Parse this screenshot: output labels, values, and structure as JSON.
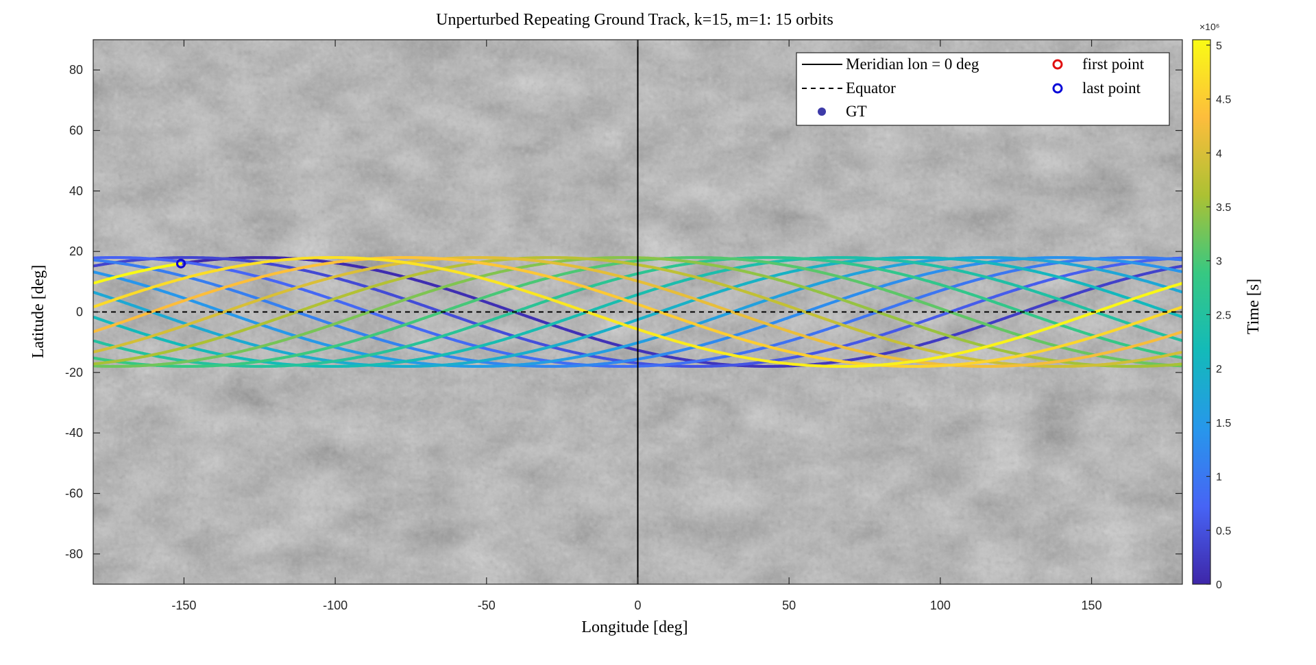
{
  "figure": {
    "title": "Unperturbed Repeating Ground Track, k=15, m=1: 15 orbits",
    "xlabel": "Longitude [deg]",
    "ylabel": "Latitude [deg]",
    "colorbar_label": "Time [s]",
    "colorbar_exponent": "×10⁶"
  },
  "legend": {
    "meridian": "Meridian lon = 0 deg",
    "equator": "Equator",
    "gt": "GT",
    "first_point": "first point",
    "last_point": "last point"
  },
  "colors": {
    "meridian": "#000000",
    "equator": "#000000",
    "first_point": "#e01010",
    "last_point": "#0a0ad8",
    "gt_marker": "#3d3aa8",
    "colormap": [
      "#3e26a8",
      "#4764f5",
      "#2797eb",
      "#13bab9",
      "#37c882",
      "#acc133",
      "#fdbd3c",
      "#f9fb15"
    ]
  },
  "chart_data": {
    "type": "scatter",
    "description_note": "",
    "xlim": [
      -180,
      180
    ],
    "ylim": [
      -90,
      90
    ],
    "x_ticks": [
      -150,
      -100,
      -50,
      0,
      50,
      100,
      150
    ],
    "y_ticks": [
      -80,
      -60,
      -40,
      -20,
      0,
      20,
      40,
      60,
      80
    ],
    "x_tick_labels": [
      "-150",
      "-100",
      "-50",
      "0",
      "50",
      "100",
      "150"
    ],
    "y_tick_labels": [
      "-80",
      "-60",
      "-40",
      "-20",
      "0",
      "20",
      "40",
      "60",
      "80"
    ],
    "colorbar": {
      "min": 0,
      "max": 5.05,
      "ticks": [
        0,
        0.5,
        1,
        1.5,
        2,
        2.5,
        3,
        3.5,
        4,
        4.5,
        5
      ],
      "tick_labels": [
        "0",
        "0.5",
        "1",
        "1.5",
        "2",
        "2.5",
        "3",
        "3.5",
        "4",
        "4.5",
        "5"
      ]
    },
    "ground_track": {
      "orbits": 15,
      "inclination_deg": 18,
      "start_lon_deg": -151,
      "start_lat_deg": 16,
      "lon_shift_per_orbit_deg": -24,
      "time_end_1e6_s": 5.05
    },
    "first_point": {
      "lon": -151,
      "lat": 16
    },
    "last_point": {
      "lon": -151,
      "lat": 16
    },
    "meridian_lon": 0,
    "equator_lat": 0
  }
}
